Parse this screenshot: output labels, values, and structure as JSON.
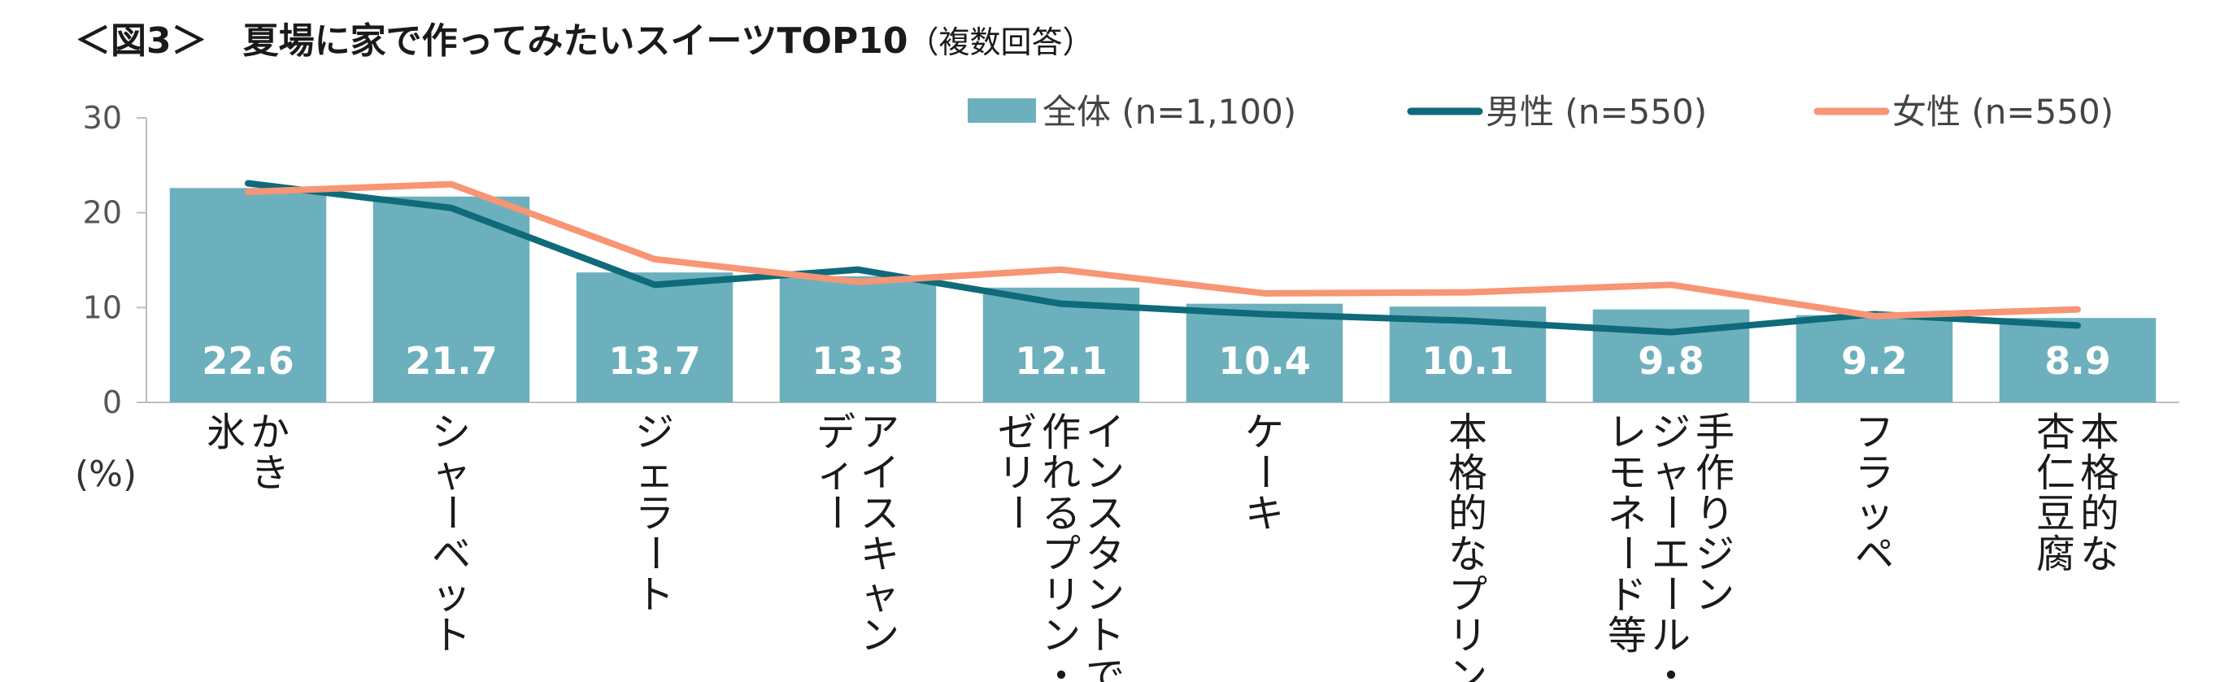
{
  "title": "＜図3＞　夏場に家で作ってみたいスイーツTOP10",
  "subtitle": "（複数回答）",
  "chart_data": {
    "type": "bar",
    "ylabel": "(%)",
    "ylim": [
      0,
      30
    ],
    "yticks": [
      0,
      10,
      20,
      30
    ],
    "categories": [
      [
        "かき",
        "氷"
      ],
      [
        "シャーベット"
      ],
      [
        "ジェラート"
      ],
      [
        "アイスキャン",
        "ディー"
      ],
      [
        "インスタントで",
        "作れるプリン・",
        "ゼリー"
      ],
      [
        "ケーキ"
      ],
      [
        "本格的なプリン"
      ],
      [
        "手作りジン",
        "ジャーエール・",
        "レモネード等"
      ],
      [
        "フラッペ"
      ],
      [
        "本格的な",
        "杏仁豆腐"
      ]
    ],
    "series": [
      {
        "name": "全体 (n=1,100)",
        "kind": "bar",
        "color": "#6cb0bd",
        "values": [
          22.6,
          21.7,
          13.7,
          13.3,
          12.1,
          10.4,
          10.1,
          9.8,
          9.2,
          8.9
        ]
      },
      {
        "name": "男性 (n=550)",
        "kind": "line",
        "color": "#0f6a7a",
        "values": [
          23.1,
          20.5,
          12.4,
          14.0,
          10.4,
          9.3,
          8.6,
          7.4,
          9.3,
          8.1
        ]
      },
      {
        "name": "女性 (n=550)",
        "kind": "line",
        "color": "#f79574",
        "values": [
          22.2,
          23.0,
          15.1,
          12.7,
          14.0,
          11.5,
          11.6,
          12.4,
          9.1,
          9.8
        ]
      }
    ]
  }
}
